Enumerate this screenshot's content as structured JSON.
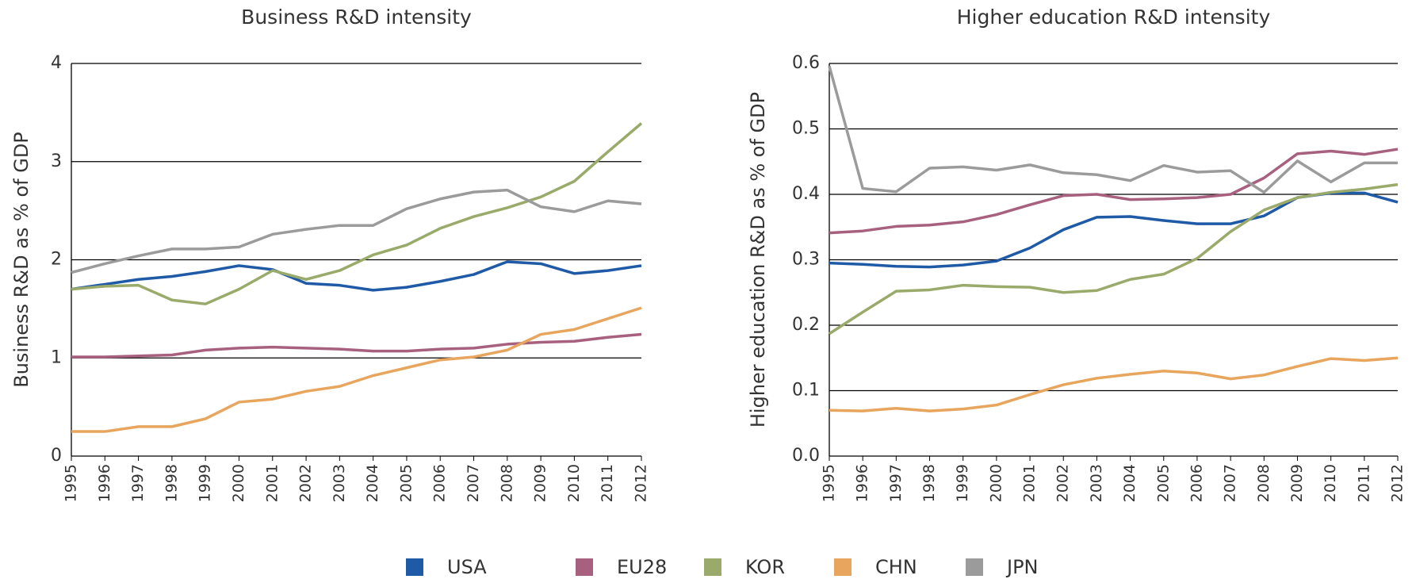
{
  "chart_data": [
    {
      "type": "line",
      "title": "Business R&D intensity",
      "y_label": "Business R&D as % of GDP",
      "categories": [
        "1995",
        "1996",
        "1997",
        "1998",
        "1999",
        "2000",
        "2001",
        "2002",
        "2003",
        "2004",
        "2005",
        "2006",
        "2007",
        "2008",
        "2009",
        "2010",
        "2011",
        "2012"
      ],
      "ylim": [
        0,
        4
      ],
      "yticks": [
        0,
        1,
        2,
        3,
        4
      ],
      "grid": true,
      "series": [
        {
          "name": "USA",
          "color": "#1f5aa6",
          "values": [
            1.7,
            1.75,
            1.8,
            1.83,
            1.88,
            1.94,
            1.9,
            1.76,
            1.74,
            1.69,
            1.72,
            1.78,
            1.85,
            1.98,
            1.96,
            1.86,
            1.89,
            1.94
          ]
        },
        {
          "name": "EU28",
          "color": "#a8607f",
          "values": [
            1.01,
            1.01,
            1.02,
            1.03,
            1.08,
            1.1,
            1.11,
            1.1,
            1.09,
            1.07,
            1.07,
            1.09,
            1.1,
            1.14,
            1.16,
            1.17,
            1.21,
            1.24
          ]
        },
        {
          "name": "KOR",
          "color": "#9aaa6a",
          "values": [
            1.7,
            1.73,
            1.74,
            1.59,
            1.55,
            1.7,
            1.89,
            1.8,
            1.89,
            2.05,
            2.15,
            2.32,
            2.44,
            2.53,
            2.64,
            2.8,
            3.1,
            3.39
          ]
        },
        {
          "name": "CHN",
          "color": "#e8a55d",
          "values": [
            0.25,
            0.25,
            0.3,
            0.3,
            0.38,
            0.55,
            0.58,
            0.66,
            0.71,
            0.82,
            0.9,
            0.98,
            1.01,
            1.08,
            1.24,
            1.29,
            1.4,
            1.51
          ]
        },
        {
          "name": "JPN",
          "color": "#9b9b9b",
          "values": [
            1.87,
            1.96,
            2.04,
            2.11,
            2.11,
            2.13,
            2.26,
            2.31,
            2.35,
            2.35,
            2.52,
            2.62,
            2.69,
            2.71,
            2.54,
            2.49,
            2.6,
            2.57
          ]
        }
      ]
    },
    {
      "type": "line",
      "title": "Higher education R&D intensity",
      "y_label": "Higher education R&D as % of GDP",
      "categories": [
        "1995",
        "1996",
        "1997",
        "1998",
        "1999",
        "2000",
        "2001",
        "2002",
        "2003",
        "2004",
        "2005",
        "2006",
        "2007",
        "2008",
        "2009",
        "2010",
        "2011",
        "2012"
      ],
      "ylim": [
        0,
        0.6
      ],
      "yticks": [
        {
          "value": 0,
          "label": "0.0"
        },
        0.1,
        0.2,
        0.3,
        0.4,
        0.5,
        0.6
      ],
      "grid": true,
      "series": [
        {
          "name": "USA",
          "color": "#1f5aa6",
          "values": [
            0.295,
            0.293,
            0.29,
            0.289,
            0.292,
            0.298,
            0.318,
            0.346,
            0.365,
            0.366,
            0.36,
            0.355,
            0.355,
            0.367,
            0.395,
            0.402,
            0.402,
            0.388
          ]
        },
        {
          "name": "EU28",
          "color": "#a8607f",
          "values": [
            0.341,
            0.344,
            0.351,
            0.353,
            0.358,
            0.369,
            0.384,
            0.398,
            0.4,
            0.392,
            0.393,
            0.395,
            0.4,
            0.425,
            0.462,
            0.466,
            0.461,
            0.469
          ]
        },
        {
          "name": "KOR",
          "color": "#9aaa6a",
          "values": [
            0.187,
            0.22,
            0.252,
            0.254,
            0.261,
            0.259,
            0.258,
            0.25,
            0.253,
            0.27,
            0.278,
            0.302,
            0.343,
            0.376,
            0.395,
            0.403,
            0.408,
            0.415
          ]
        },
        {
          "name": "CHN",
          "color": "#e8a55d",
          "values": [
            0.07,
            0.069,
            0.073,
            0.069,
            0.072,
            0.078,
            0.094,
            0.109,
            0.119,
            0.125,
            0.13,
            0.127,
            0.118,
            0.124,
            0.137,
            0.149,
            0.146,
            0.15
          ]
        },
        {
          "name": "JPN",
          "color": "#9b9b9b",
          "values": [
            0.596,
            0.409,
            0.404,
            0.44,
            0.442,
            0.437,
            0.445,
            0.433,
            0.43,
            0.421,
            0.444,
            0.434,
            0.436,
            0.403,
            0.451,
            0.419,
            0.448,
            0.448
          ]
        }
      ]
    }
  ]
}
